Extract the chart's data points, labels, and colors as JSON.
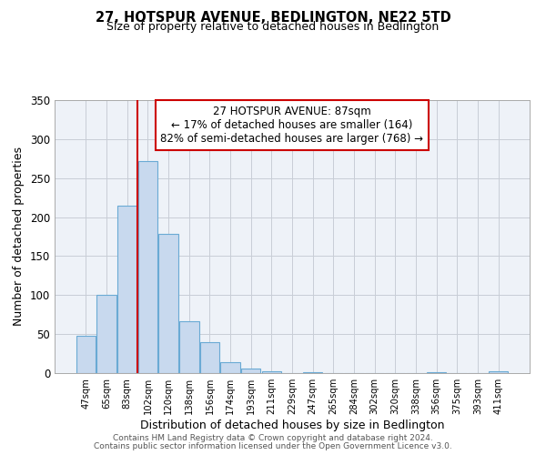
{
  "title": "27, HOTSPUR AVENUE, BEDLINGTON, NE22 5TD",
  "subtitle": "Size of property relative to detached houses in Bedlington",
  "xlabel": "Distribution of detached houses by size in Bedlington",
  "ylabel": "Number of detached properties",
  "bar_labels": [
    "47sqm",
    "65sqm",
    "83sqm",
    "102sqm",
    "120sqm",
    "138sqm",
    "156sqm",
    "174sqm",
    "193sqm",
    "211sqm",
    "229sqm",
    "247sqm",
    "265sqm",
    "284sqm",
    "302sqm",
    "320sqm",
    "338sqm",
    "356sqm",
    "375sqm",
    "393sqm",
    "411sqm"
  ],
  "bar_values": [
    48,
    100,
    215,
    272,
    178,
    67,
    40,
    14,
    6,
    2,
    0,
    1,
    0,
    0,
    0,
    0,
    0,
    1,
    0,
    0,
    2
  ],
  "bar_color": "#c8d9ee",
  "bar_edgecolor": "#6aaad4",
  "vline_index": 2,
  "vline_color": "#cc0000",
  "ylim": [
    0,
    350
  ],
  "yticks": [
    0,
    50,
    100,
    150,
    200,
    250,
    300,
    350
  ],
  "annotation_title": "27 HOTSPUR AVENUE: 87sqm",
  "annotation_line1": "← 17% of detached houses are smaller (164)",
  "annotation_line2": "82% of semi-detached houses are larger (768) →",
  "annotation_box_facecolor": "#ffffff",
  "annotation_box_edgecolor": "#cc0000",
  "footer_line1": "Contains HM Land Registry data © Crown copyright and database right 2024.",
  "footer_line2": "Contains public sector information licensed under the Open Government Licence v3.0.",
  "background_color": "#ffffff",
  "plot_bg_color": "#eef2f8",
  "grid_color": "#c8cdd6"
}
